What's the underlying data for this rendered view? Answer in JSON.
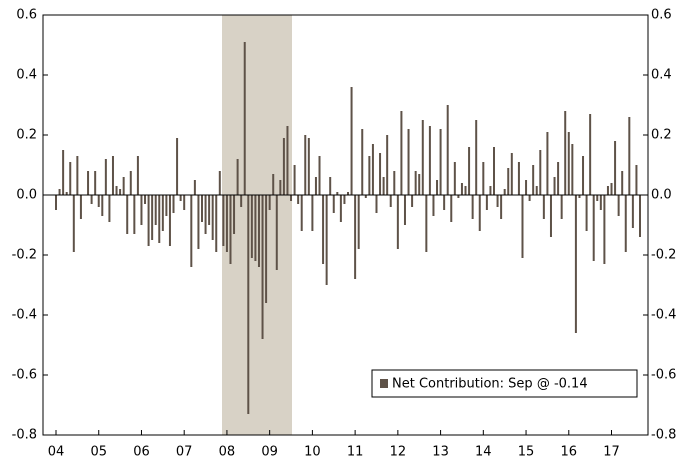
{
  "chart_data": {
    "type": "bar",
    "categories": [
      "04",
      null,
      null,
      null,
      null,
      null,
      null,
      null,
      null,
      null,
      null,
      null,
      "05",
      null,
      null,
      null,
      null,
      null,
      null,
      null,
      null,
      null,
      null,
      null,
      "06",
      null,
      null,
      null,
      null,
      null,
      null,
      null,
      null,
      null,
      null,
      null,
      "07",
      null,
      null,
      null,
      null,
      null,
      null,
      null,
      null,
      null,
      null,
      null,
      "08",
      null,
      null,
      null,
      null,
      null,
      null,
      null,
      null,
      null,
      null,
      null,
      "09",
      null,
      null,
      null,
      null,
      null,
      null,
      null,
      null,
      null,
      null,
      null,
      "10",
      null,
      null,
      null,
      null,
      null,
      null,
      null,
      null,
      null,
      null,
      null,
      "11",
      null,
      null,
      null,
      null,
      null,
      null,
      null,
      null,
      null,
      null,
      null,
      "12",
      null,
      null,
      null,
      null,
      null,
      null,
      null,
      null,
      null,
      null,
      null,
      "13",
      null,
      null,
      null,
      null,
      null,
      null,
      null,
      null,
      null,
      null,
      null,
      "14",
      null,
      null,
      null,
      null,
      null,
      null,
      null,
      null,
      null,
      null,
      null,
      "15",
      null,
      null,
      null,
      null,
      null,
      null,
      null,
      null,
      null,
      null,
      null,
      "16",
      null,
      null,
      null,
      null,
      null,
      null,
      null,
      null,
      null,
      null,
      null,
      "17",
      null,
      null,
      null,
      null,
      null,
      null,
      null,
      null
    ],
    "series": [
      {
        "name": "Net Contribution: Sep @ -0.14",
        "color": "#5e5248",
        "values": [
          -0.05,
          0.02,
          0.15,
          0.01,
          0.11,
          -0.19,
          0.13,
          -0.08,
          0.0,
          0.08,
          -0.03,
          0.08,
          -0.04,
          -0.07,
          0.12,
          -0.09,
          0.13,
          0.03,
          0.02,
          0.06,
          -0.13,
          0.08,
          -0.13,
          0.13,
          -0.1,
          -0.03,
          -0.17,
          -0.15,
          -0.1,
          -0.16,
          -0.12,
          -0.07,
          -0.17,
          -0.06,
          0.19,
          -0.02,
          -0.05,
          0.0,
          -0.24,
          0.05,
          -0.18,
          -0.09,
          -0.13,
          -0.1,
          -0.15,
          -0.19,
          0.08,
          -0.17,
          -0.19,
          -0.23,
          -0.13,
          0.12,
          -0.04,
          0.51,
          -0.73,
          -0.21,
          -0.22,
          -0.24,
          -0.48,
          -0.36,
          -0.05,
          0.07,
          -0.25,
          0.05,
          0.19,
          0.23,
          -0.02,
          0.1,
          -0.03,
          -0.12,
          0.2,
          0.19,
          -0.12,
          0.06,
          0.13,
          -0.23,
          -0.3,
          0.06,
          -0.06,
          0.01,
          -0.09,
          -0.03,
          0.01,
          0.36,
          -0.28,
          -0.18,
          0.22,
          -0.01,
          0.13,
          0.17,
          -0.06,
          0.14,
          0.06,
          0.2,
          -0.04,
          0.08,
          -0.18,
          0.28,
          -0.1,
          0.22,
          -0.04,
          0.08,
          0.07,
          0.25,
          -0.19,
          0.23,
          -0.07,
          0.05,
          0.22,
          -0.05,
          0.3,
          -0.09,
          0.11,
          -0.01,
          0.04,
          0.03,
          0.16,
          -0.08,
          0.25,
          -0.12,
          0.11,
          -0.05,
          0.03,
          0.16,
          -0.04,
          -0.08,
          0.02,
          0.09,
          0.14,
          0.0,
          0.11,
          -0.21,
          0.05,
          -0.02,
          0.1,
          0.03,
          0.15,
          -0.08,
          0.21,
          -0.14,
          0.06,
          0.11,
          -0.08,
          0.28,
          0.21,
          0.17,
          -0.46,
          -0.01,
          0.13,
          -0.12,
          0.27,
          -0.22,
          -0.02,
          -0.05,
          -0.23,
          0.03,
          0.04,
          0.18,
          -0.07,
          0.08,
          -0.19,
          0.26,
          -0.11,
          0.1,
          -0.14
        ]
      }
    ],
    "ylim": [
      -0.8,
      0.6
    ],
    "yticks": [
      -0.8,
      -0.6,
      -0.4,
      -0.2,
      {
        "value": 0,
        "label": "0.0"
      },
      0.2,
      0.4,
      0.6
    ],
    "y2lim": [
      -0.8,
      0.6
    ],
    "y2ticks": [
      -0.8,
      -0.6,
      -0.4,
      -0.2,
      {
        "value": 0,
        "label": "0.0"
      },
      0.2,
      0.4,
      0.6
    ],
    "legend": "lower right"
  }
}
